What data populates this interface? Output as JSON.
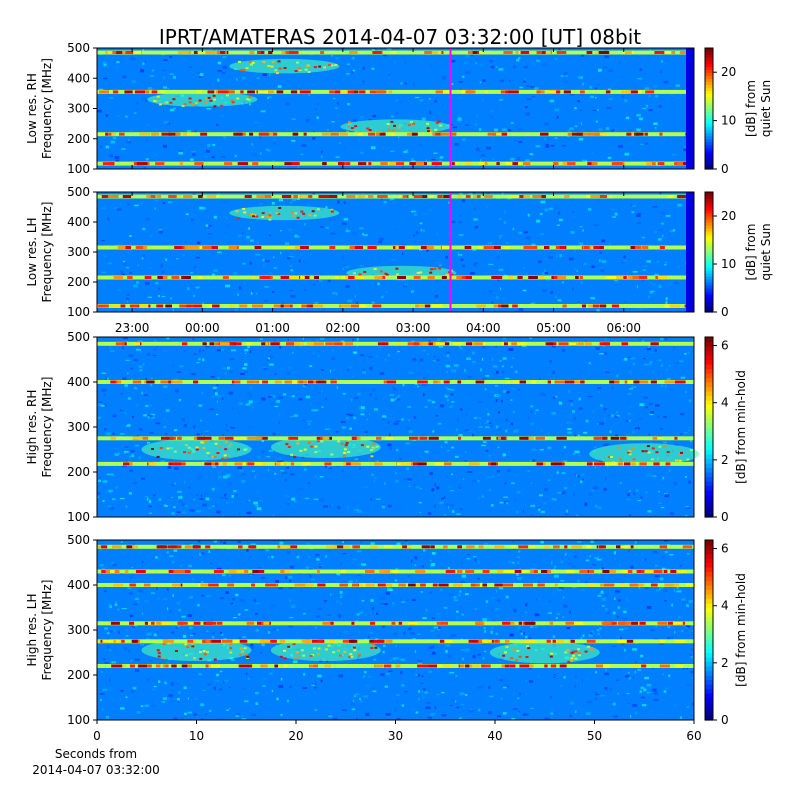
{
  "title": "IPRT/AMATERAS 2014-04-07 03:32:00 [UT]   08bit",
  "colors": {
    "cursor_line": "#ff00ff",
    "colormap": "jet",
    "jet_stops": [
      "#00007f",
      "#0000ff",
      "#007fff",
      "#00ffff",
      "#7fff7f",
      "#ffff00",
      "#ff7f00",
      "#ff0000",
      "#7f0000"
    ]
  },
  "chart_data": [
    {
      "type": "heatmap",
      "ylabel": [
        "Low res. RH",
        "Frequency [MHz]"
      ],
      "colorbar_label": [
        "[dB] from",
        "quiet Sun"
      ],
      "ylim": [
        100,
        500
      ],
      "yticks": [
        "100",
        "200",
        "300",
        "400",
        "500"
      ],
      "xlim": [
        "22:30",
        "07:00"
      ],
      "clim": [
        0,
        25
      ],
      "cbar_ticks": [
        "0",
        "10",
        "20"
      ],
      "cursor_time": "03:32",
      "bands_mhz": [
        485,
        355,
        215,
        118
      ],
      "bright_patches": [
        {
          "time": "01:10",
          "freq_mhz": 440
        },
        {
          "time": "02:45",
          "freq_mhz": 240
        },
        {
          "time": "00:00",
          "freq_mhz": 330
        }
      ]
    },
    {
      "type": "heatmap",
      "ylabel": [
        "Low res. LH",
        "Frequency [MHz]"
      ],
      "colorbar_label": [
        "[dB] from",
        "quiet Sun"
      ],
      "ylim": [
        100,
        500
      ],
      "yticks": [
        "100",
        "200",
        "300",
        "400",
        "500"
      ],
      "xlim": [
        "22:30",
        "07:00"
      ],
      "xticks": [
        "23:00",
        "00:00",
        "01:00",
        "02:00",
        "03:00",
        "04:00",
        "05:00",
        "06:00"
      ],
      "clim": [
        0,
        25
      ],
      "cbar_ticks": [
        "0",
        "10",
        "20"
      ],
      "cursor_time": "03:32",
      "bands_mhz": [
        485,
        315,
        215,
        120
      ],
      "bright_patches": [
        {
          "time": "01:10",
          "freq_mhz": 430
        },
        {
          "time": "02:50",
          "freq_mhz": 230
        }
      ]
    },
    {
      "type": "heatmap",
      "ylabel": [
        "High res. RH",
        "Frequency [MHz]"
      ],
      "colorbar_label": [
        "[dB] from min-hold"
      ],
      "ylim": [
        100,
        500
      ],
      "yticks": [
        "100",
        "200",
        "300",
        "400",
        "500"
      ],
      "xlim": [
        0,
        60
      ],
      "clim": [
        0,
        6.3
      ],
      "cbar_ticks": [
        "0",
        "2",
        "4",
        "6"
      ],
      "bands_mhz": [
        485,
        400,
        275,
        218
      ],
      "bright_patches": [
        {
          "x": 23,
          "freq_mhz": 255
        },
        {
          "x": 10,
          "freq_mhz": 250
        },
        {
          "x": 55,
          "freq_mhz": 240
        }
      ]
    },
    {
      "type": "heatmap",
      "ylabel": [
        "High res. LH",
        "Frequency [MHz]"
      ],
      "colorbar_label": [
        "[dB] from min-hold"
      ],
      "ylim": [
        100,
        500
      ],
      "yticks": [
        "100",
        "200",
        "300",
        "400",
        "500"
      ],
      "xlim": [
        0,
        60
      ],
      "xticks": [
        "0",
        "10",
        "20",
        "30",
        "40",
        "50",
        "60"
      ],
      "xlabel": [
        "Seconds from",
        "2014-04-07 03:32:00"
      ],
      "clim": [
        0,
        6.3
      ],
      "cbar_ticks": [
        "0",
        "2",
        "4",
        "6"
      ],
      "bands_mhz": [
        485,
        430,
        400,
        315,
        275,
        220
      ],
      "bright_patches": [
        {
          "x": 23,
          "freq_mhz": 255
        },
        {
          "x": 10,
          "freq_mhz": 255
        },
        {
          "x": 45,
          "freq_mhz": 250
        }
      ]
    }
  ]
}
